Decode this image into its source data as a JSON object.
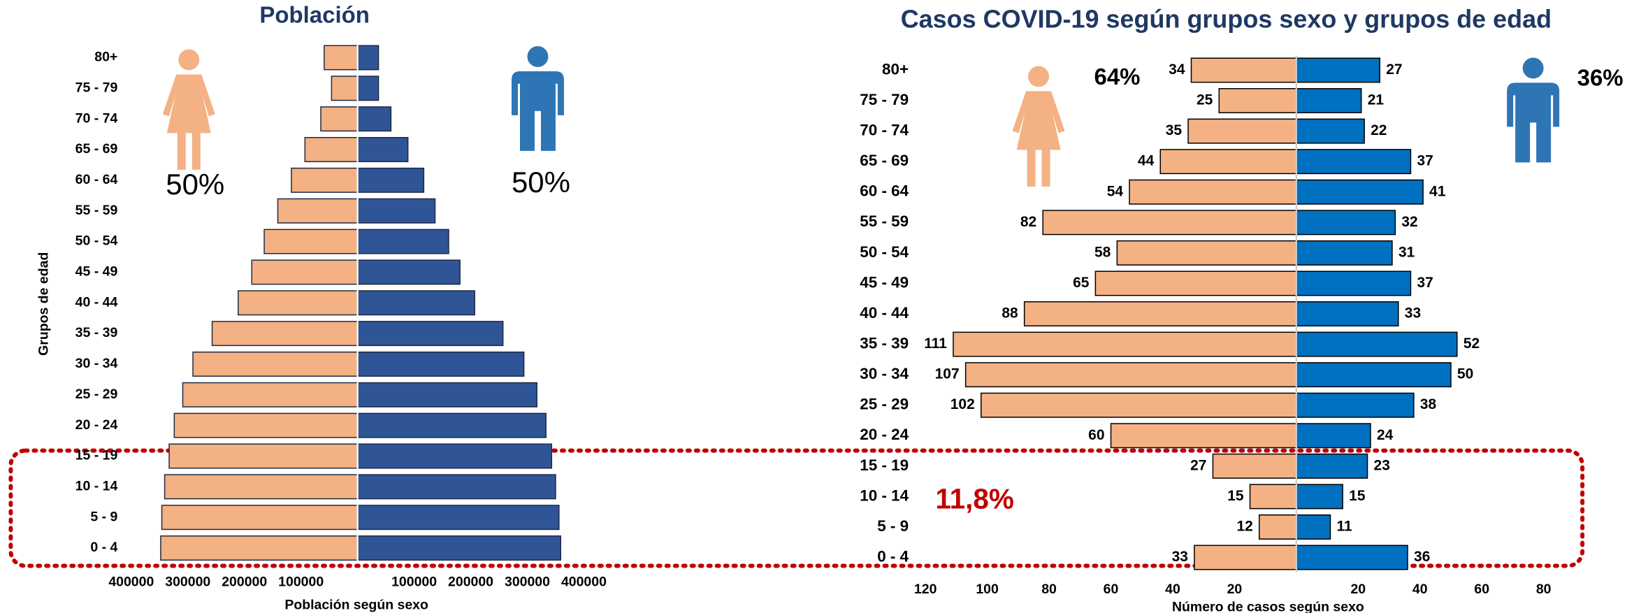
{
  "chart_data": [
    {
      "type": "pyramid",
      "title": "Población",
      "categories": [
        "0 - 4",
        "5 - 9",
        "10 - 14",
        "15 - 19",
        "20 - 24",
        "25 - 29",
        "30 - 34",
        "35 - 39",
        "40 - 44",
        "45 - 49",
        "50 - 54",
        "55 - 59",
        "60 - 64",
        "65 - 69",
        "70 - 74",
        "75 - 79",
        "80+"
      ],
      "y_label": "Grupos de edad",
      "x_label": "Población según sexo",
      "data_labels": false,
      "series": [
        {
          "side": "left",
          "color": "#f4b183",
          "share": "50%",
          "xlim": [
            0,
            400000
          ],
          "xticks": [
            100000,
            200000,
            300000,
            400000
          ],
          "values": [
            348000,
            346000,
            341000,
            333000,
            324000,
            309000,
            291000,
            257000,
            211000,
            187000,
            165000,
            141000,
            117000,
            93000,
            65000,
            46000,
            59000
          ]
        },
        {
          "side": "right",
          "color": "#2f5597",
          "share": "50%",
          "xlim": [
            0,
            400000
          ],
          "xticks": [
            100000,
            200000,
            300000,
            400000
          ],
          "values": [
            359000,
            356000,
            350000,
            343000,
            333000,
            317000,
            294000,
            257000,
            207000,
            181000,
            161000,
            137000,
            117000,
            89000,
            59000,
            37000,
            37000
          ]
        }
      ]
    },
    {
      "type": "pyramid",
      "title": "Casos COVID-19 según grupos sexo y grupos de edad",
      "categories": [
        "0 - 4",
        "5 - 9",
        "10 - 14",
        "15 - 19",
        "20 - 24",
        "25 - 29",
        "30 - 34",
        "35 - 39",
        "40 - 44",
        "45 - 49",
        "50 - 54",
        "55 - 59",
        "60 - 64",
        "65 - 69",
        "70 - 74",
        "75 - 79",
        "80+"
      ],
      "x_label": "Número de casos según sexo",
      "data_labels": true,
      "annotation": "11,8%",
      "series": [
        {
          "side": "left",
          "color": "#f4b183",
          "share": "64%",
          "xlim": [
            0,
            120
          ],
          "xticks": [
            20,
            40,
            60,
            80,
            100,
            120
          ],
          "values": [
            33,
            12,
            15,
            27,
            60,
            102,
            107,
            111,
            88,
            65,
            58,
            82,
            54,
            44,
            35,
            25,
            34
          ]
        },
        {
          "side": "right",
          "color": "#0070c0",
          "share": "36%",
          "xlim": [
            0,
            80
          ],
          "xticks": [
            20,
            40,
            60,
            80
          ],
          "values": [
            36,
            11,
            15,
            23,
            24,
            38,
            50,
            52,
            33,
            37,
            31,
            32,
            41,
            37,
            22,
            21,
            27
          ]
        }
      ]
    }
  ]
}
